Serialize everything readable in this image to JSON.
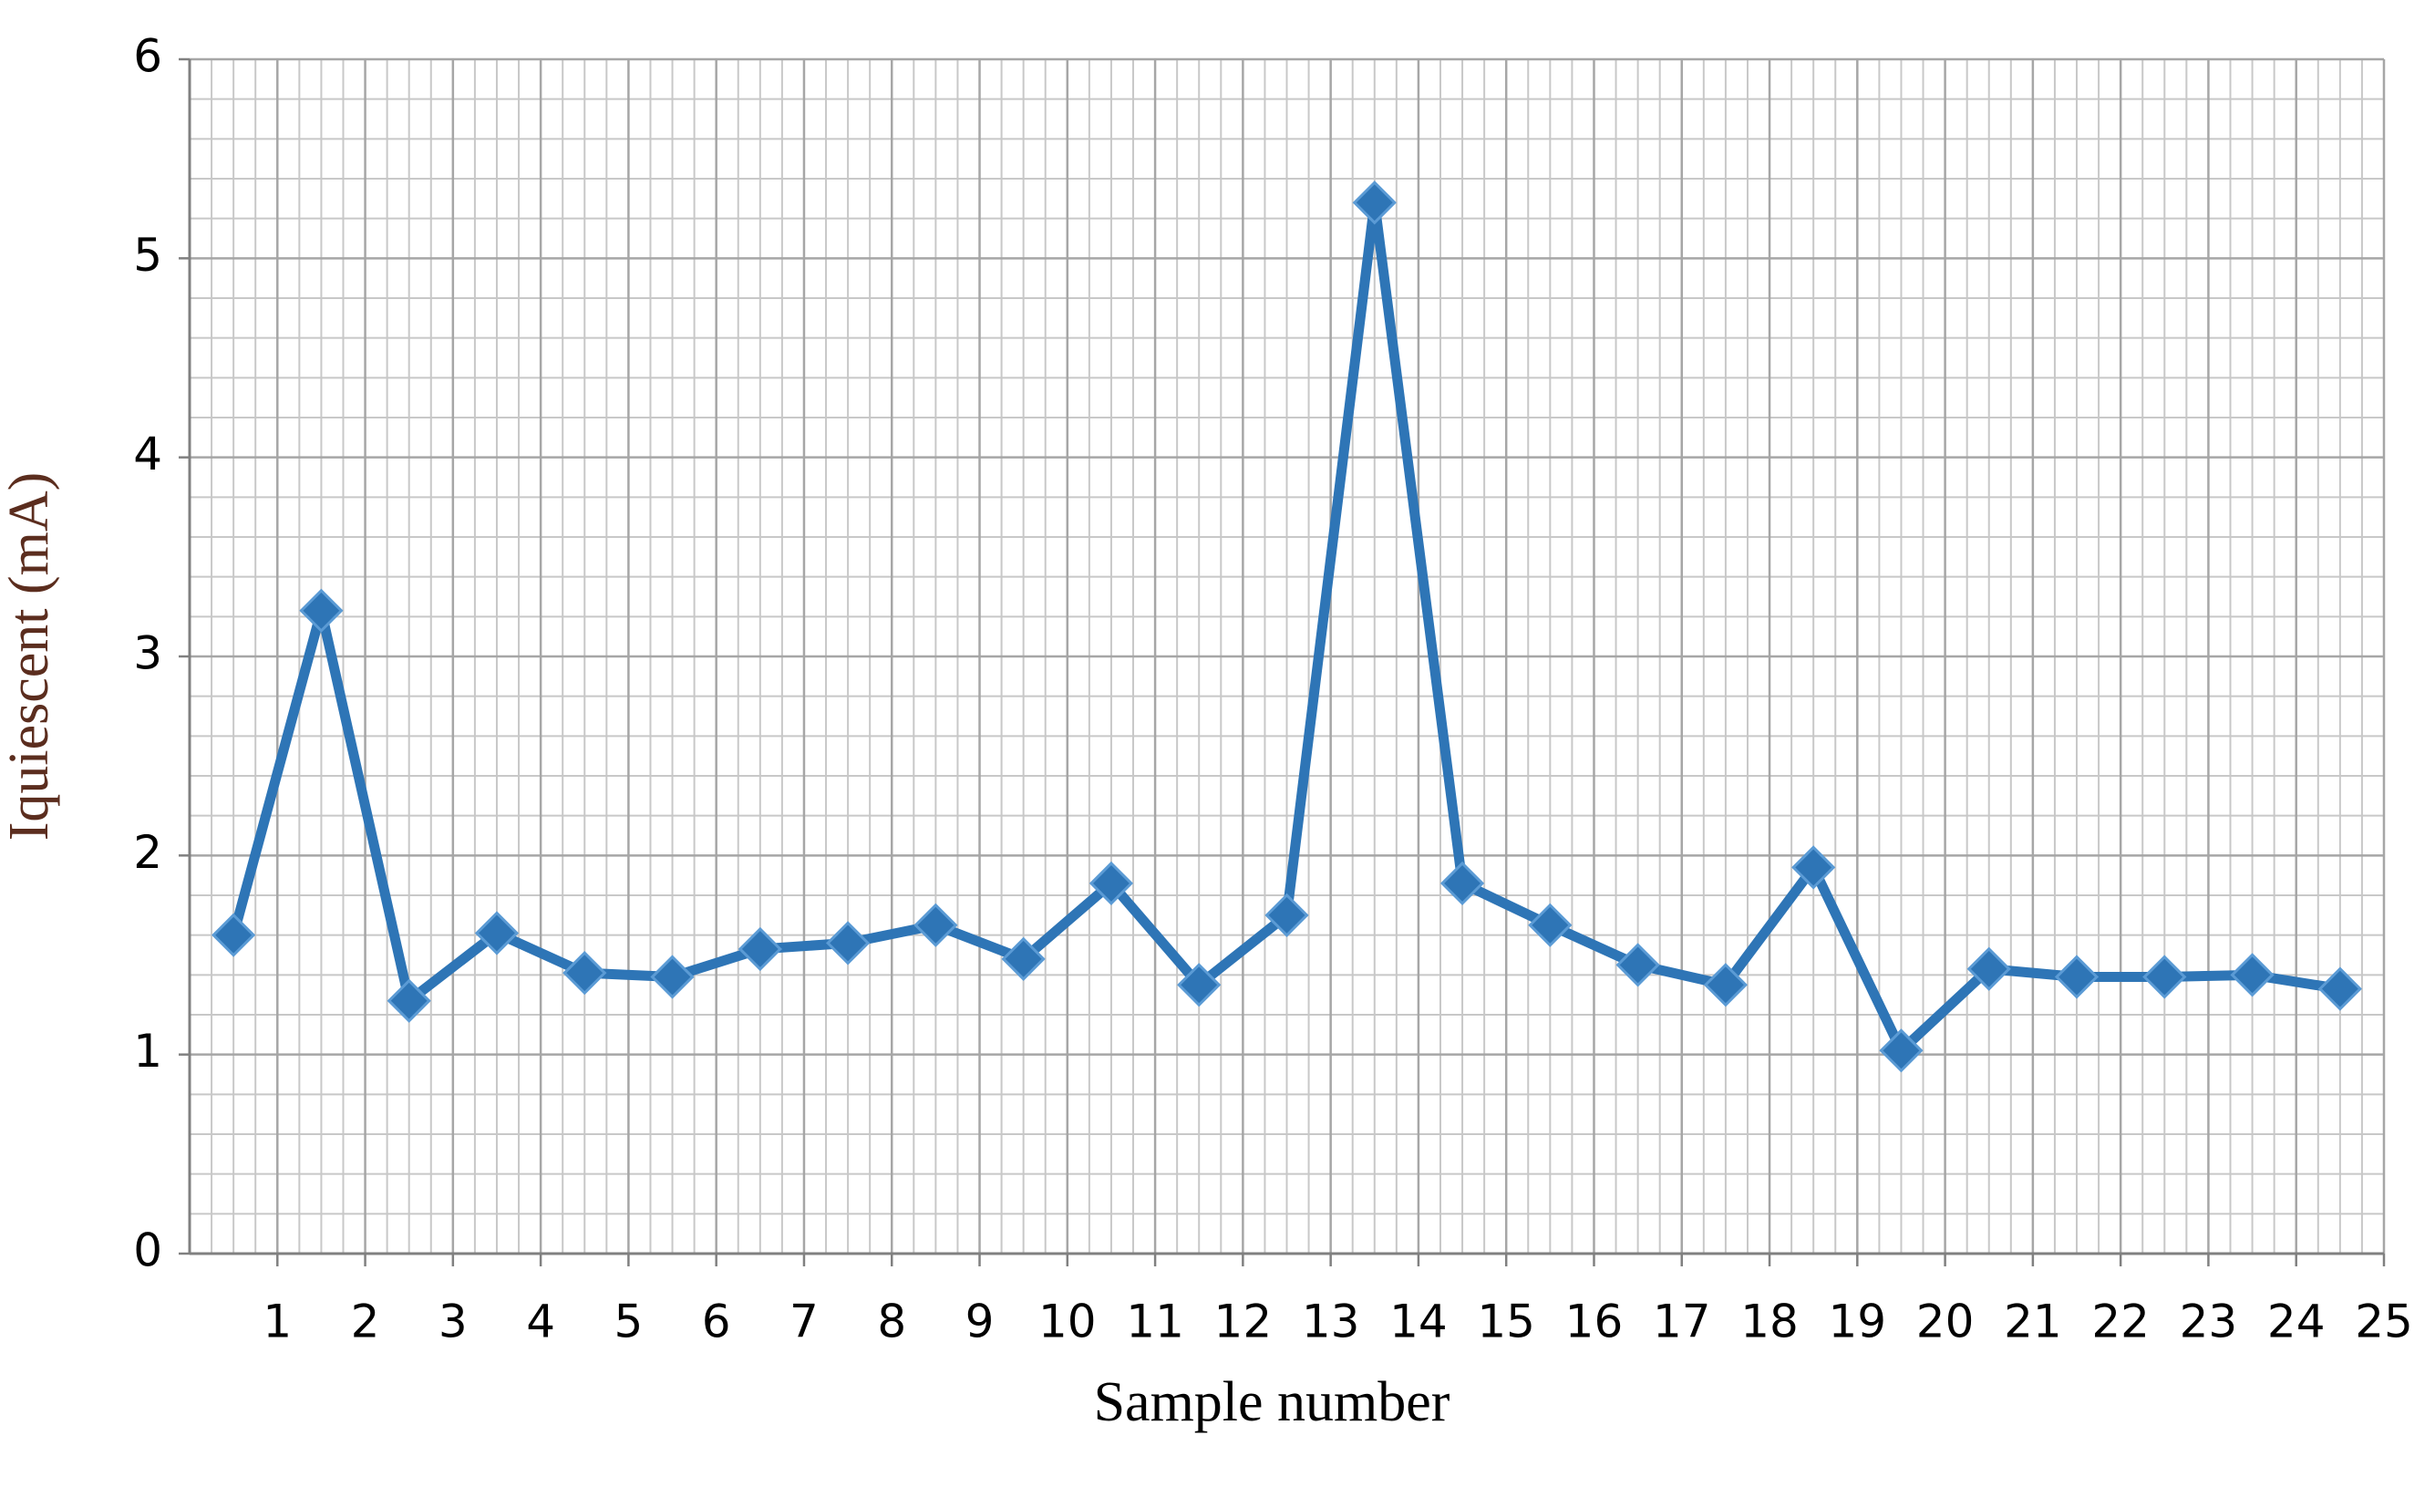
{
  "chart_data": {
    "type": "line",
    "x_label": "Sample number",
    "y_label": "Iquiescent (mA)",
    "x": [
      0.5,
      1.5,
      2.5,
      3.5,
      4.5,
      5.5,
      6.5,
      7.5,
      8.5,
      9.5,
      10.5,
      11.5,
      12.5,
      13.5,
      14.5,
      15.5,
      16.5,
      17.5,
      18.5,
      19.5,
      20.5,
      21.5,
      22.5,
      23.5,
      24.5
    ],
    "series": [
      {
        "color": "#2e75b6",
        "values": [
          1.6,
          3.23,
          1.27,
          1.61,
          1.41,
          1.39,
          1.53,
          1.56,
          1.65,
          1.48,
          1.86,
          1.35,
          1.7,
          5.28,
          1.86,
          1.65,
          1.45,
          1.35,
          1.94,
          1.02,
          1.43,
          1.39,
          1.39,
          1.4,
          1.33
        ]
      }
    ],
    "xlim": [
      0,
      25
    ],
    "xticks": [
      1,
      2,
      3,
      4,
      5,
      6,
      7,
      8,
      9,
      10,
      11,
      12,
      13,
      14,
      15,
      16,
      17,
      18,
      19,
      20,
      21,
      22,
      23,
      24,
      25
    ],
    "ylim": [
      0,
      6
    ],
    "yticks": [
      0,
      1,
      2,
      3,
      4,
      5,
      6
    ],
    "grid": true,
    "marker": "diamond"
  }
}
